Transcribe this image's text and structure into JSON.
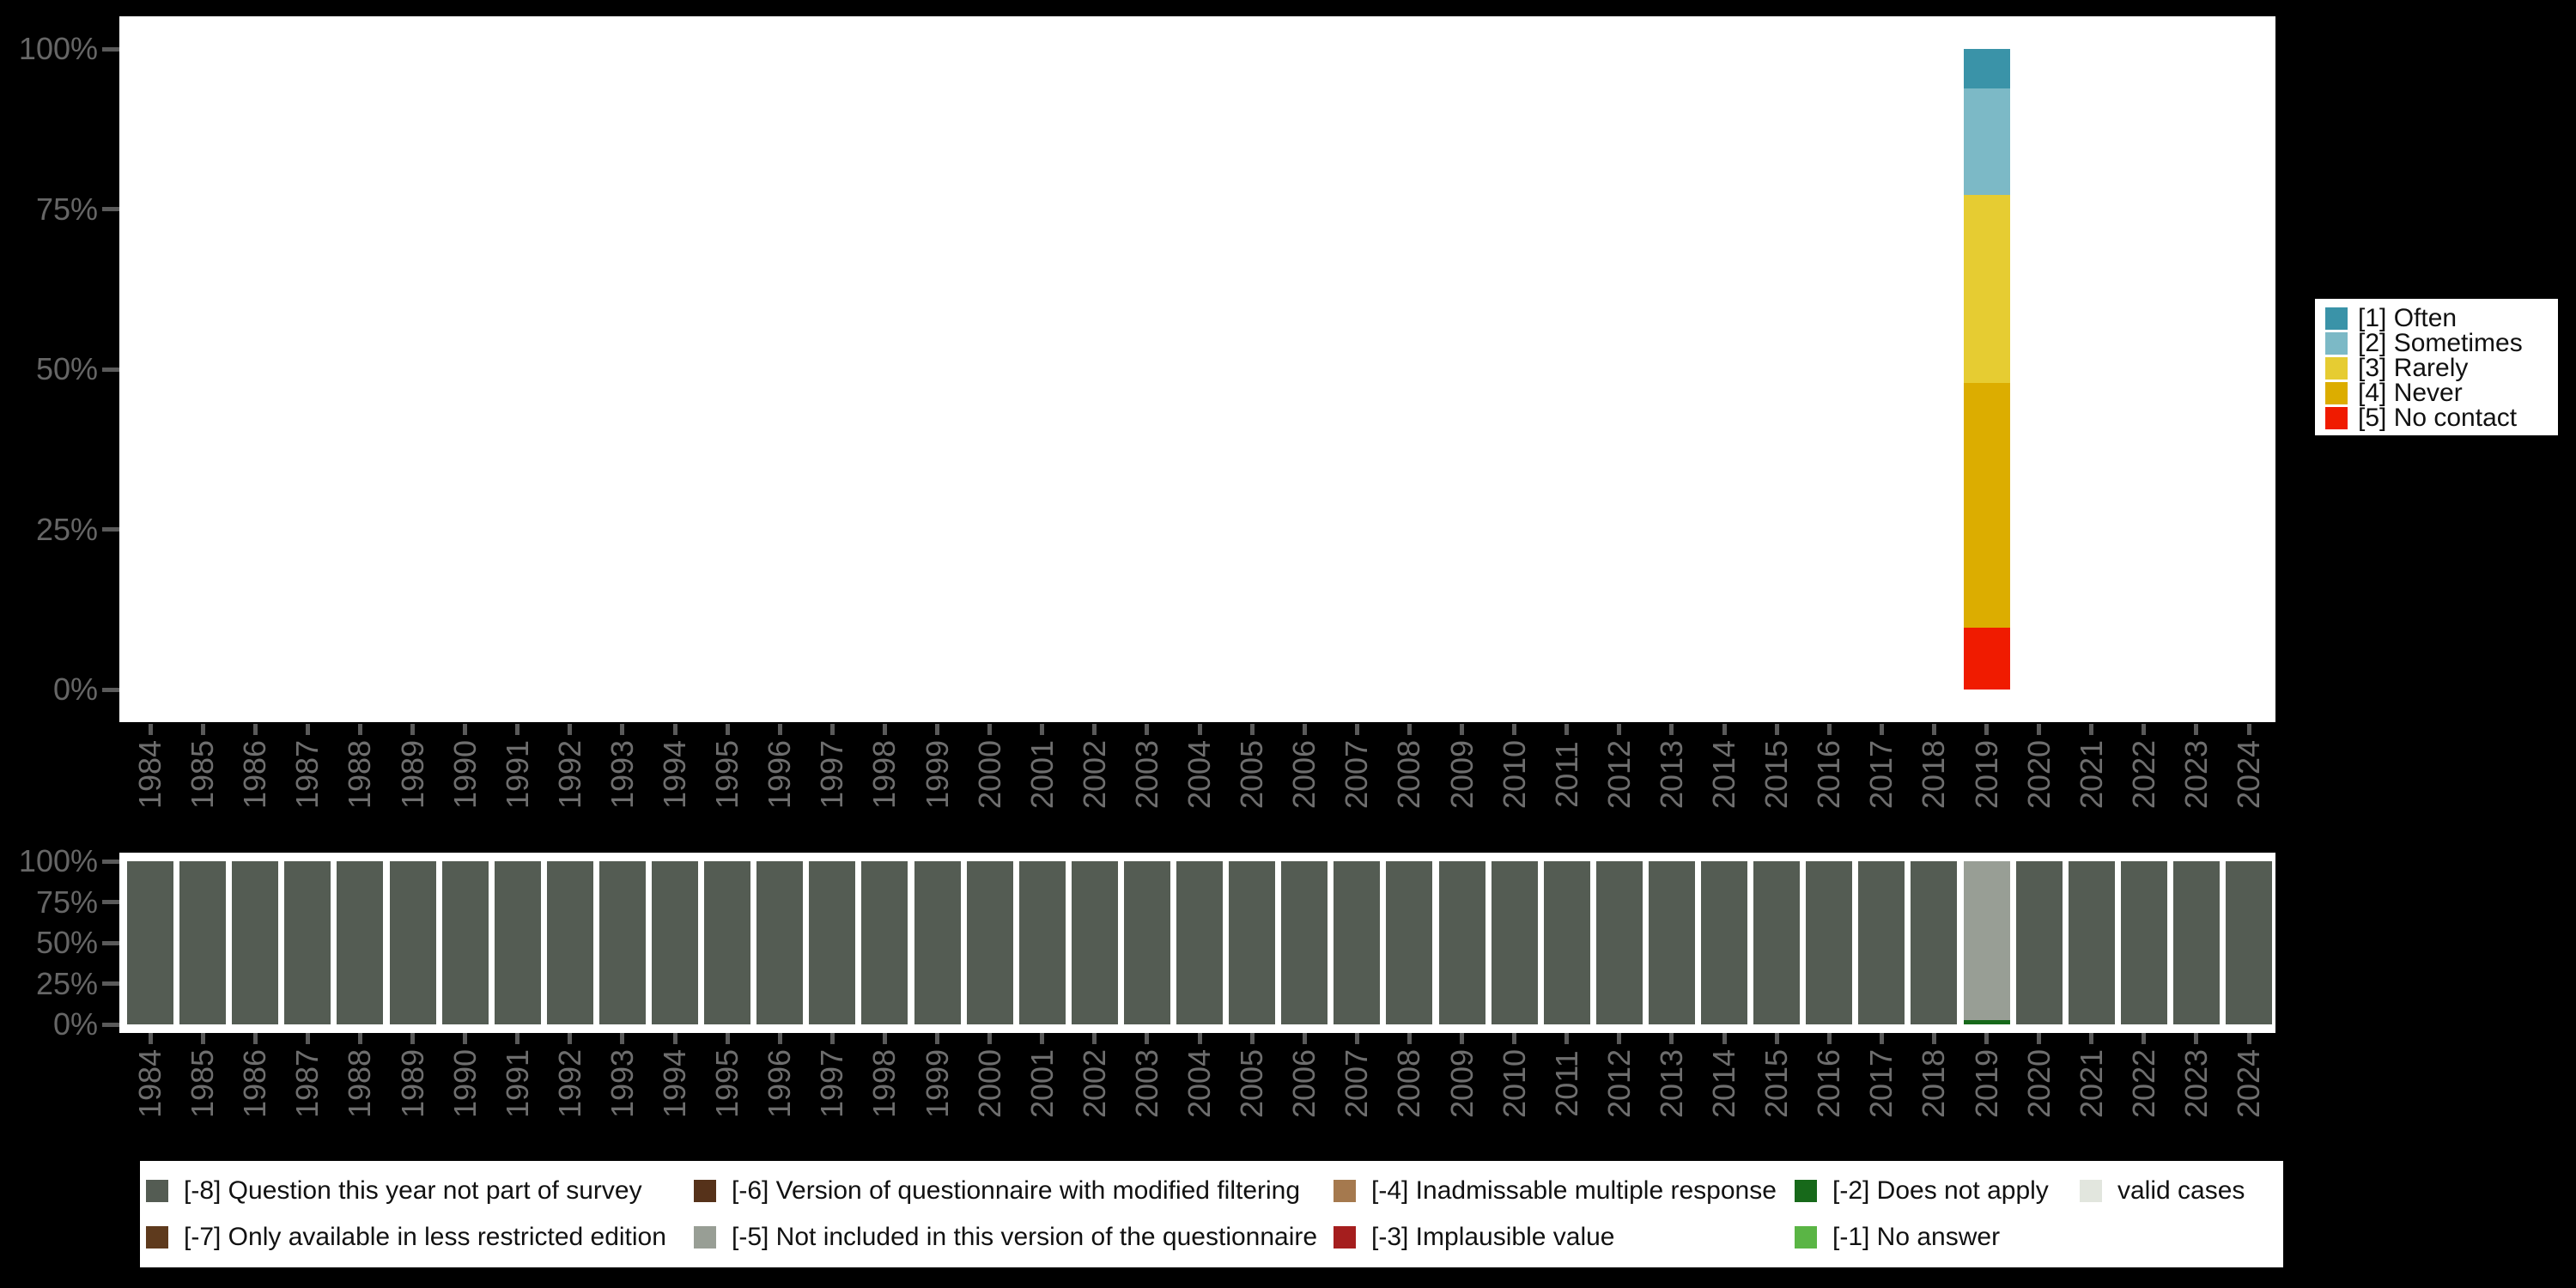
{
  "background_color": "#000000",
  "right_legend": {
    "items": [
      {
        "label": "[1] Often",
        "color": "#3a93a8"
      },
      {
        "label": "[2] Sometimes",
        "color": "#7cb9c6"
      },
      {
        "label": "[3] Rarely",
        "color": "#e6cc32"
      },
      {
        "label": "[4] Never",
        "color": "#dcad00"
      },
      {
        "label": "[5] No contact",
        "color": "#f01b00"
      }
    ]
  },
  "bottom_legend": {
    "columns": [
      [
        {
          "label": "[-8] Question this year not part of survey",
          "color": "#545c53"
        },
        {
          "label": "[-7] Only available in less restricted edition",
          "color": "#5e3a1d"
        }
      ],
      [
        {
          "label": "[-6] Version of questionnaire with modified filtering",
          "color": "#56321a"
        },
        {
          "label": "[-5] Not included in this version of the questionnaire",
          "color": "#989e95"
        }
      ],
      [
        {
          "label": "[-4] Inadmissable multiple response",
          "color": "#a5794e"
        },
        {
          "label": "[-3] Implausible value",
          "color": "#a51e1e"
        }
      ],
      [
        {
          "label": "[-2] Does not apply",
          "color": "#17691a"
        },
        {
          "label": "[-1] No answer",
          "color": "#5ab545"
        }
      ],
      [
        {
          "label": "valid cases",
          "color": "#e2e6de"
        }
      ]
    ]
  },
  "chart_data": [
    {
      "id": "answer-distribution-by-year",
      "type": "bar",
      "stacked": true,
      "unit": "percent",
      "title": "",
      "xlabel": "",
      "ylabel": "",
      "ylim": [
        0,
        100
      ],
      "grid": false,
      "legend_position": "right",
      "y_ticks": [
        "0%",
        "25%",
        "50%",
        "75%",
        "100%"
      ],
      "x_categories": [
        "1984",
        "1985",
        "1986",
        "1987",
        "1988",
        "1989",
        "1990",
        "1991",
        "1992",
        "1993",
        "1994",
        "1995",
        "1996",
        "1997",
        "1998",
        "1999",
        "2000",
        "2001",
        "2002",
        "2003",
        "2004",
        "2005",
        "2006",
        "2007",
        "2008",
        "2009",
        "2010",
        "2011",
        "2012",
        "2013",
        "2014",
        "2015",
        "2016",
        "2017",
        "2018",
        "2019",
        "2020",
        "2021",
        "2022",
        "2023",
        "2024"
      ],
      "series": [
        {
          "name": "[1] Often",
          "color": "#3a93a8"
        },
        {
          "name": "[2] Sometimes",
          "color": "#7cb9c6"
        },
        {
          "name": "[3] Rarely",
          "color": "#e6cc32"
        },
        {
          "name": "[4] Never",
          "color": "#dcad00"
        },
        {
          "name": "[5] No contact",
          "color": "#f01b00"
        }
      ],
      "bars": {
        "2019": [
          {
            "series": "[1] Often",
            "pct": 6.2
          },
          {
            "series": "[2] Sometimes",
            "pct": 16.6
          },
          {
            "series": "[3] Rarely",
            "pct": 29.3
          },
          {
            "series": "[4] Never",
            "pct": 38.3
          },
          {
            "series": "[5] No contact",
            "pct": 9.6
          }
        ]
      }
    },
    {
      "id": "missing-values-by-year",
      "type": "bar",
      "stacked": true,
      "unit": "percent",
      "title": "",
      "xlabel": "",
      "ylabel": "",
      "ylim": [
        0,
        100
      ],
      "grid": false,
      "legend_position": "bottom",
      "y_ticks": [
        "0%",
        "25%",
        "50%",
        "75%",
        "100%"
      ],
      "x_categories": [
        "1984",
        "1985",
        "1986",
        "1987",
        "1988",
        "1989",
        "1990",
        "1991",
        "1992",
        "1993",
        "1994",
        "1995",
        "1996",
        "1997",
        "1998",
        "1999",
        "2000",
        "2001",
        "2002",
        "2003",
        "2004",
        "2005",
        "2006",
        "2007",
        "2008",
        "2009",
        "2010",
        "2011",
        "2012",
        "2013",
        "2014",
        "2015",
        "2016",
        "2017",
        "2018",
        "2019",
        "2020",
        "2021",
        "2022",
        "2023",
        "2024"
      ],
      "series": [
        {
          "name": "[-8] Question this year not part of survey",
          "color": "#545c53"
        },
        {
          "name": "[-7] Only available in less restricted edition",
          "color": "#5e3a1d"
        },
        {
          "name": "[-6] Version of questionnaire with modified filtering",
          "color": "#56321a"
        },
        {
          "name": "[-5] Not included in this version of the questionnaire",
          "color": "#989e95"
        },
        {
          "name": "[-4] Inadmissable multiple response",
          "color": "#a5794e"
        },
        {
          "name": "[-3] Implausible value",
          "color": "#a51e1e"
        },
        {
          "name": "[-2] Does not apply",
          "color": "#17691a"
        },
        {
          "name": "[-1] No answer",
          "color": "#5ab545"
        },
        {
          "name": "valid cases",
          "color": "#e2e6de"
        }
      ],
      "default_bar": [
        {
          "series": "[-8] Question this year not part of survey",
          "pct": 100
        }
      ],
      "bars": {
        "2019": [
          {
            "series": "[-5] Not included in this version of the questionnaire",
            "pct": 97.5
          },
          {
            "series": "[-2] Does not apply",
            "pct": 2.5
          }
        ]
      }
    }
  ]
}
